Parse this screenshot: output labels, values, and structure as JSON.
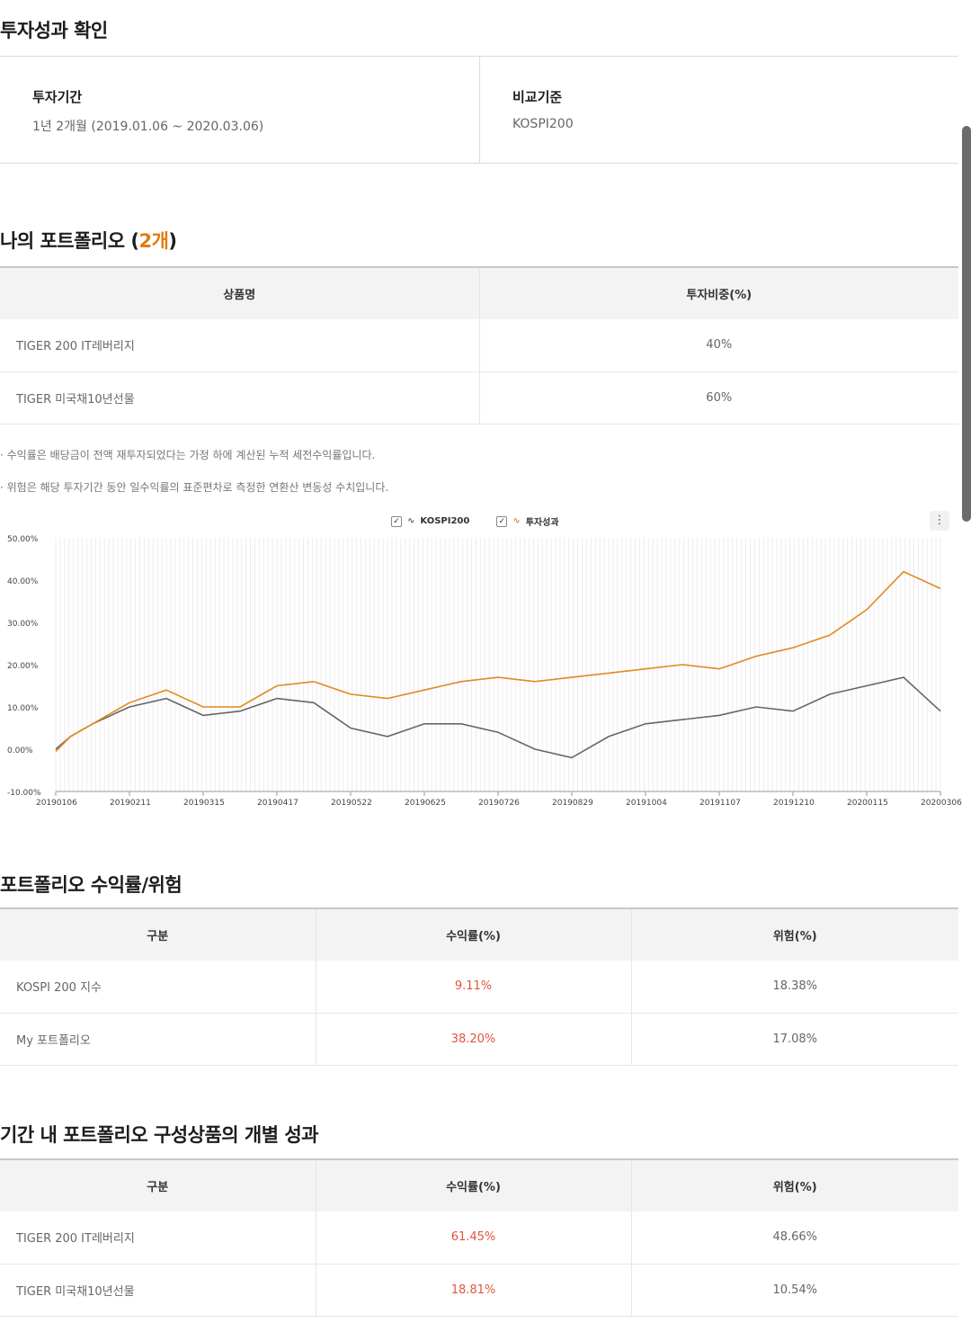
{
  "investment_check": {
    "title": "투자성과 확인",
    "period_label": "투자기간",
    "period_value": "1년 2개월 (2019.01.06 ~ 2020.03.06)",
    "benchmark_label": "비교기준",
    "benchmark_value": "KOSPI200"
  },
  "portfolio": {
    "title_prefix": "나의 포트폴리오 (",
    "count": "2개",
    "title_suffix": ")",
    "headers": [
      "상품명",
      "투자비중(%)"
    ],
    "rows": [
      {
        "name": "TIGER 200 IT레버리지",
        "weight": "40%"
      },
      {
        "name": "TIGER 미국채10년선물",
        "weight": "60%"
      }
    ]
  },
  "notes": [
    "· 수익률은 배당금이 전액 재투자되었다는 가정 하에 계산된 누적 세전수익률입니다.",
    "· 위험은 해당 투자기간 동안 일수익률의 표준편차로 측정한 연환산 변동성 수치입니다."
  ],
  "chart_data": {
    "type": "line",
    "legend_placement": "top-center",
    "grid": true,
    "ylim": [
      -10,
      50
    ],
    "y_ticks": [
      "50.00%",
      "40.00%",
      "30.00%",
      "20.00%",
      "10.00%",
      "0.00%",
      "-10.00%"
    ],
    "x_ticks": [
      "20190106",
      "20190211",
      "20190315",
      "20190417",
      "20190522",
      "20190625",
      "20190726",
      "20190829",
      "20191004",
      "20191107",
      "20191210",
      "20200115",
      "20200306"
    ],
    "x": [
      0,
      0.2,
      0.5,
      1,
      1.5,
      2,
      2.5,
      3,
      3.5,
      4,
      4.5,
      5,
      5.5,
      6,
      6.5,
      7,
      7.5,
      8,
      8.5,
      9,
      9.5,
      10,
      10.5,
      11,
      11.5,
      12
    ],
    "series": [
      {
        "name": "KOSPI200",
        "color": "#666666",
        "values": [
          0,
          3,
          6,
          10,
          12,
          8,
          9,
          12,
          11,
          5,
          3,
          6,
          6,
          4,
          0,
          -2,
          3,
          6,
          7,
          8,
          10,
          9,
          13,
          15,
          17,
          9
        ]
      },
      {
        "name": "투자성과",
        "color": "#e08a1e",
        "values": [
          -0.5,
          3,
          6,
          11,
          14,
          10,
          10,
          15,
          16,
          13,
          12,
          14,
          16,
          17,
          16,
          17,
          18,
          19,
          20,
          19,
          22,
          24,
          27,
          33,
          42,
          38
        ]
      }
    ]
  },
  "returns": {
    "title": "포트폴리오 수익률/위험",
    "headers": [
      "구분",
      "수익률(%)",
      "위험(%)"
    ],
    "rows": [
      {
        "name": "KOSPI 200 지수",
        "return": "9.11%",
        "risk": "18.38%"
      },
      {
        "name": "My 포트폴리오",
        "return": "38.20%",
        "risk": "17.08%"
      }
    ]
  },
  "individual": {
    "title": "기간 내 포트폴리오 구성상품의 개별 성과",
    "headers": [
      "구분",
      "수익률(%)",
      "위험(%)"
    ],
    "rows": [
      {
        "name": "TIGER 200 IT레버리지",
        "return": "61.45%",
        "risk": "48.66%"
      },
      {
        "name": "TIGER 미국채10년선물",
        "return": "18.81%",
        "risk": "10.54%"
      }
    ]
  },
  "colors": {
    "accent": "#e07c11",
    "return_red": "#e0553b",
    "kospi_line": "#666666",
    "portfolio_line": "#e08a1e"
  }
}
